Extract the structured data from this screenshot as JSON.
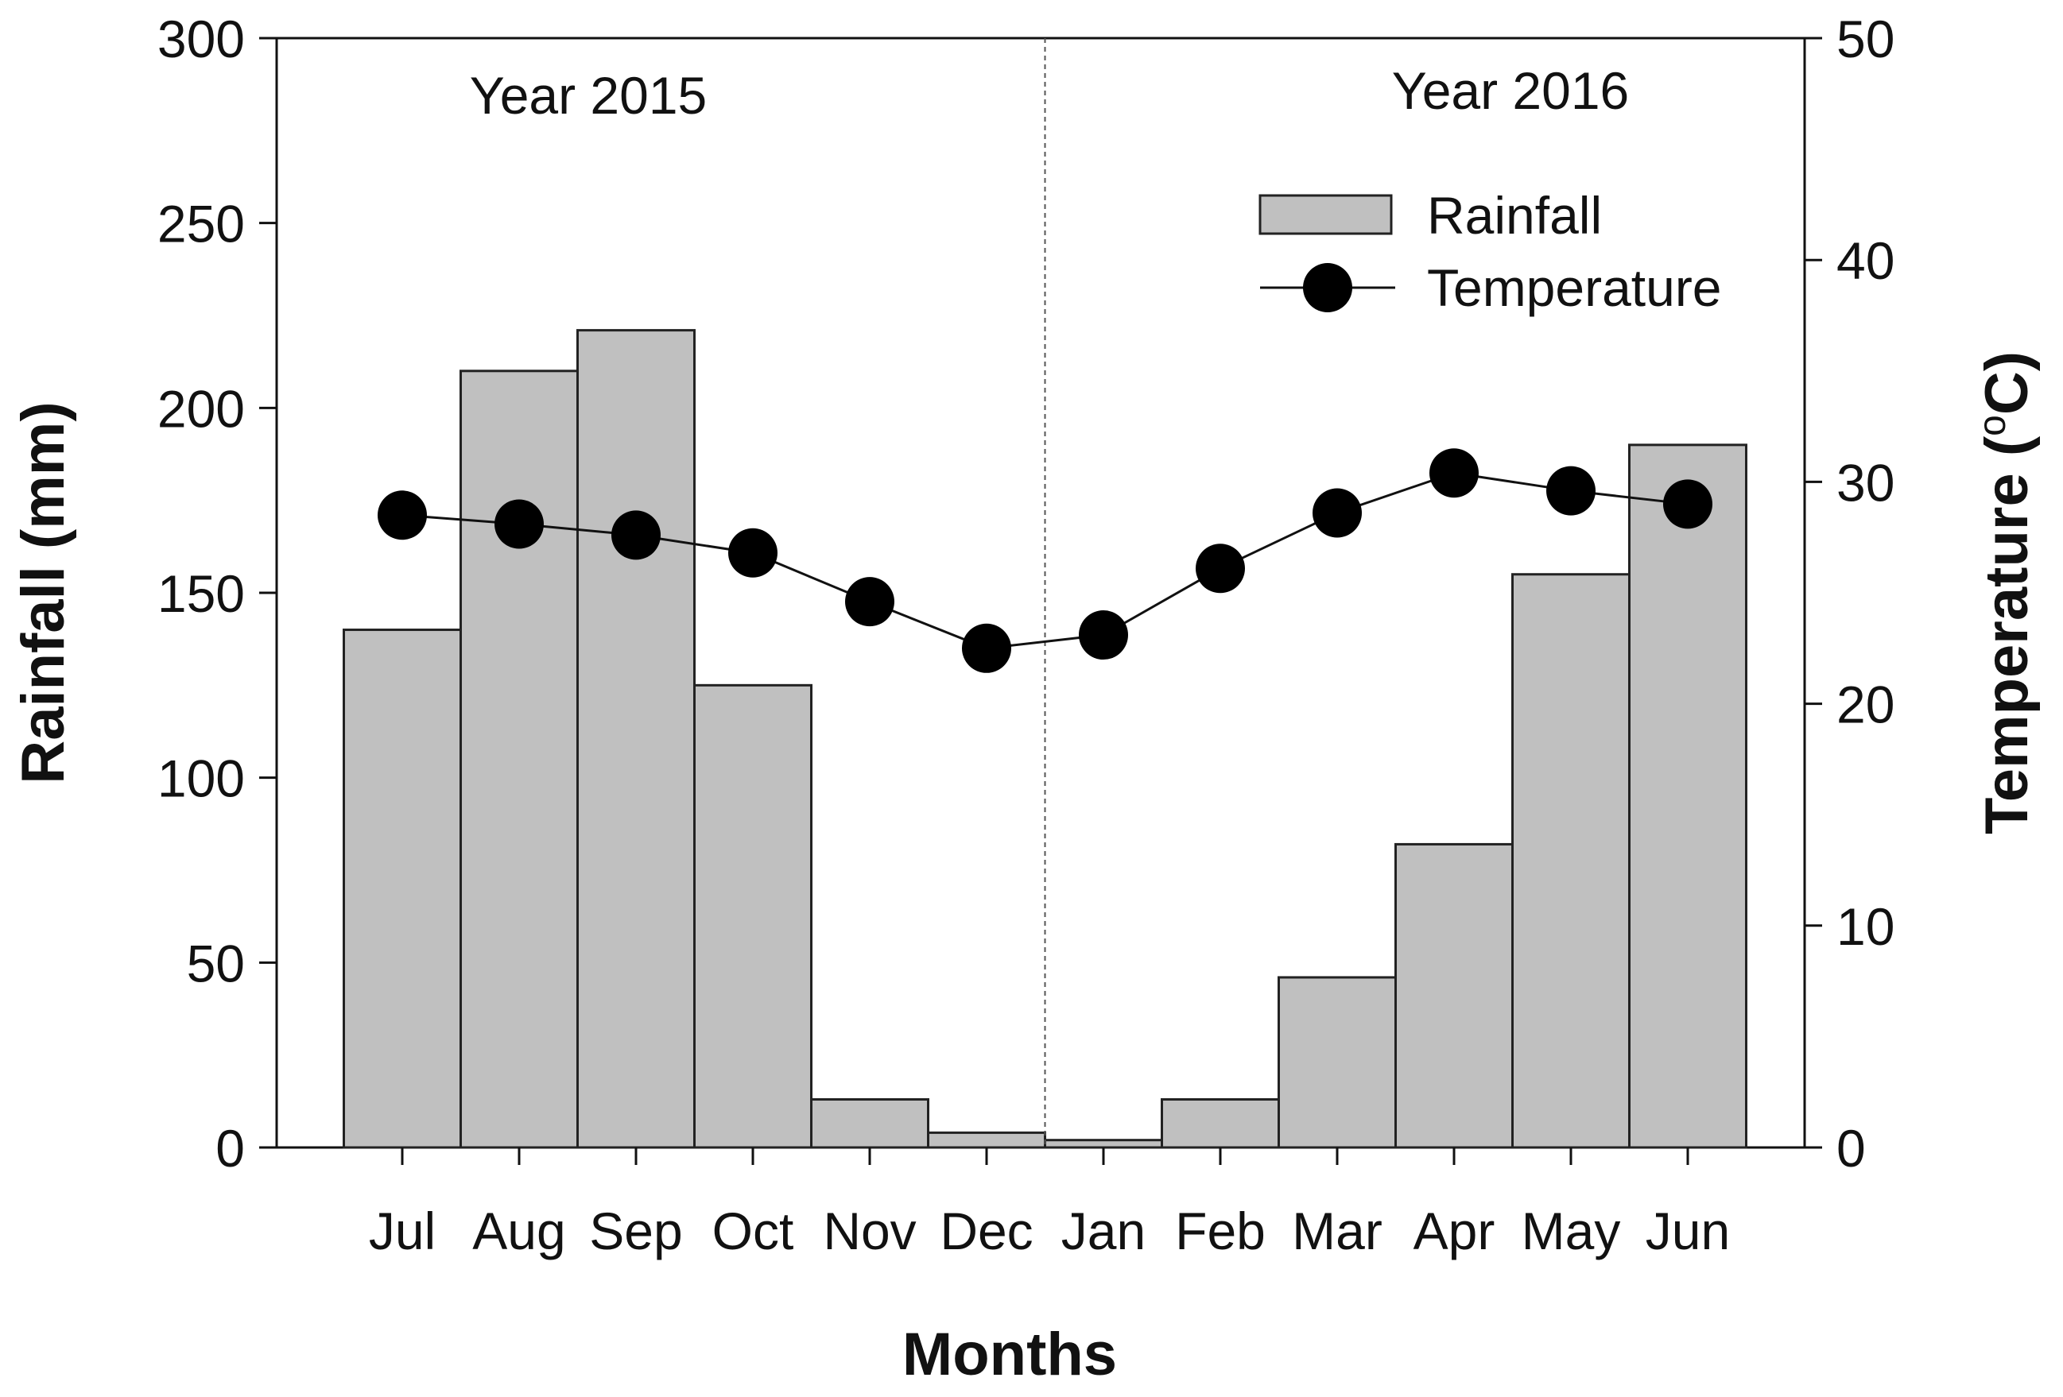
{
  "chart_data": {
    "type": "bar+line",
    "categories": [
      "Jul",
      "Aug",
      "Sep",
      "Oct",
      "Nov",
      "Dec",
      "Jan",
      "Feb",
      "Mar",
      "Apr",
      "May",
      "Jun"
    ],
    "series": [
      {
        "name": "Rainfall",
        "type": "bar",
        "axis": "left",
        "values": [
          140,
          210,
          221,
          125,
          13,
          4,
          2,
          13,
          46,
          82,
          155,
          190
        ]
      },
      {
        "name": "Temperature",
        "type": "line",
        "axis": "right",
        "values": [
          28.5,
          28.1,
          27.6,
          26.8,
          24.6,
          22.5,
          23.1,
          26.1,
          28.6,
          30.4,
          29.6,
          29.0
        ]
      }
    ],
    "xlabel": "Months",
    "ylabel": "Rainfall (mm)",
    "y2label_main": "Temperature (",
    "y2label_unit_sup": "o",
    "y2label_unit": "C)",
    "ylim": [
      0,
      300
    ],
    "y2lim": [
      0,
      50
    ],
    "yticks": [
      "0",
      "50",
      "100",
      "150",
      "200",
      "250",
      "300"
    ],
    "y2ticks": [
      "0",
      "10",
      "20",
      "30",
      "40",
      "50"
    ],
    "annotations": [
      "Year 2015",
      "Year 2016"
    ],
    "divider_after_category": "Dec",
    "legend": {
      "placement": "top-right",
      "items": [
        "Rainfall",
        "Temperature"
      ]
    },
    "bar_color": "#c0c0c0",
    "bar_stroke": "#222222",
    "line_color": "#111111",
    "marker_color": "#000000"
  }
}
